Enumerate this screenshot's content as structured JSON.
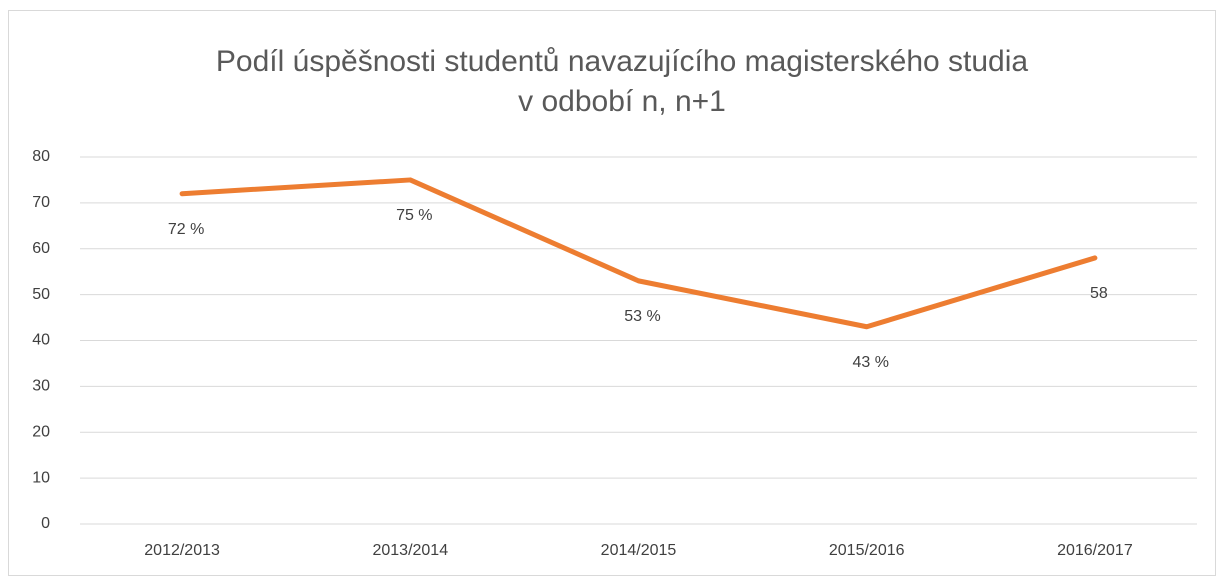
{
  "chart_data": {
    "type": "line",
    "title": [
      "Podíl úspěšnosti studentů navazujícího magisterského studia",
      "v odbobí n, n+1"
    ],
    "categories": [
      "2012/2013",
      "2013/2014",
      "2014/2015",
      "2015/2016",
      "2016/2017"
    ],
    "values": [
      72,
      75,
      53,
      43,
      58
    ],
    "value_labels": [
      "72 %",
      "75 %",
      "53 %",
      "43 %",
      "58"
    ],
    "color": "#ed7d31",
    "ylim": [
      0,
      80
    ],
    "yticks": [
      0,
      10,
      20,
      30,
      40,
      50,
      60,
      70,
      80
    ],
    "grid": true
  }
}
